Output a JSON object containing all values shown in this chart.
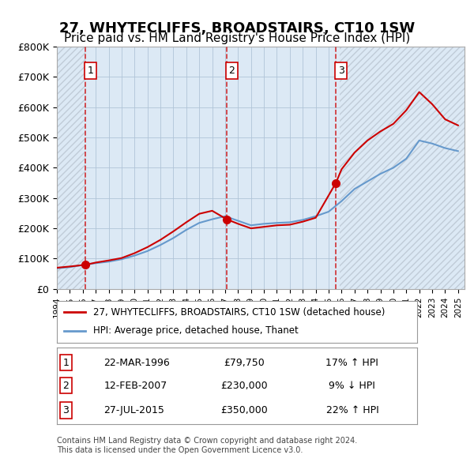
{
  "title": "27, WHYTECLIFFS, BROADSTAIRS, CT10 1SW",
  "subtitle": "Price paid vs. HM Land Registry's House Price Index (HPI)",
  "title_fontsize": 13,
  "subtitle_fontsize": 11,
  "xlabel": "",
  "ylabel": "",
  "ylim": [
    0,
    800000
  ],
  "xlim": [
    1994,
    2025.5
  ],
  "yticks": [
    0,
    100000,
    200000,
    300000,
    400000,
    500000,
    600000,
    700000,
    800000
  ],
  "ytick_labels": [
    "£0",
    "£100K",
    "£200K",
    "£300K",
    "£400K",
    "£500K",
    "£600K",
    "£700K",
    "£800K"
  ],
  "xticks": [
    1994,
    1995,
    1996,
    1997,
    1998,
    1999,
    2000,
    2001,
    2002,
    2003,
    2004,
    2005,
    2006,
    2007,
    2008,
    2009,
    2010,
    2011,
    2012,
    2013,
    2014,
    2015,
    2016,
    2017,
    2018,
    2019,
    2020,
    2021,
    2022,
    2023,
    2024,
    2025
  ],
  "background_color": "#ffffff",
  "plot_bg_color": "#dce9f5",
  "hatch_color": "#c0ccd8",
  "grid_color": "#b0c4d8",
  "red_line_color": "#cc0000",
  "blue_line_color": "#6699cc",
  "vline_color": "#cc0000",
  "purchase_dates": [
    1996.22,
    2007.12,
    2015.56
  ],
  "purchase_labels": [
    "1",
    "2",
    "3"
  ],
  "purchase_prices": [
    79750,
    230000,
    350000
  ],
  "purchase_dates_str": [
    "22-MAR-1996",
    "12-FEB-2007",
    "27-JUL-2015"
  ],
  "purchase_prices_str": [
    "£79,750",
    "£230,000",
    "£350,000"
  ],
  "purchase_hpi_str": [
    "17% ↑ HPI",
    "9% ↓ HPI",
    "22% ↑ HPI"
  ],
  "legend_label_red": "27, WHYTECLIFFS, BROADSTAIRS, CT10 1SW (detached house)",
  "legend_label_blue": "HPI: Average price, detached house, Thanet",
  "footer": "Contains HM Land Registry data © Crown copyright and database right 2024.\nThis data is licensed under the Open Government Licence v3.0.",
  "hpi_years": [
    1994,
    1995,
    1996,
    1997,
    1998,
    1999,
    2000,
    2001,
    2002,
    2003,
    2004,
    2005,
    2006,
    2007,
    2008,
    2009,
    2010,
    2011,
    2012,
    2013,
    2014,
    2015,
    2016,
    2017,
    2018,
    2019,
    2020,
    2021,
    2022,
    2023,
    2024,
    2025
  ],
  "hpi_values": [
    68000,
    72000,
    79000,
    85000,
    90000,
    98000,
    110000,
    125000,
    145000,
    168000,
    195000,
    218000,
    230000,
    240000,
    225000,
    210000,
    215000,
    218000,
    220000,
    228000,
    240000,
    255000,
    290000,
    330000,
    355000,
    380000,
    400000,
    430000,
    490000,
    480000,
    465000,
    455000
  ],
  "red_years": [
    1994,
    1995,
    1996.22,
    1997,
    1998,
    1999,
    2000,
    2001,
    2002,
    2003,
    2004,
    2005,
    2006,
    2007.12,
    2008,
    2009,
    2010,
    2011,
    2012,
    2013,
    2014,
    2015.56,
    2016,
    2017,
    2018,
    2019,
    2020,
    2021,
    2022,
    2023,
    2024,
    2025
  ],
  "red_values": [
    70000,
    74000,
    79750,
    87000,
    94000,
    102000,
    118000,
    138000,
    162000,
    190000,
    220000,
    248000,
    258000,
    230000,
    215000,
    200000,
    205000,
    210000,
    212000,
    222000,
    235000,
    350000,
    395000,
    450000,
    490000,
    520000,
    545000,
    590000,
    650000,
    610000,
    560000,
    540000
  ]
}
